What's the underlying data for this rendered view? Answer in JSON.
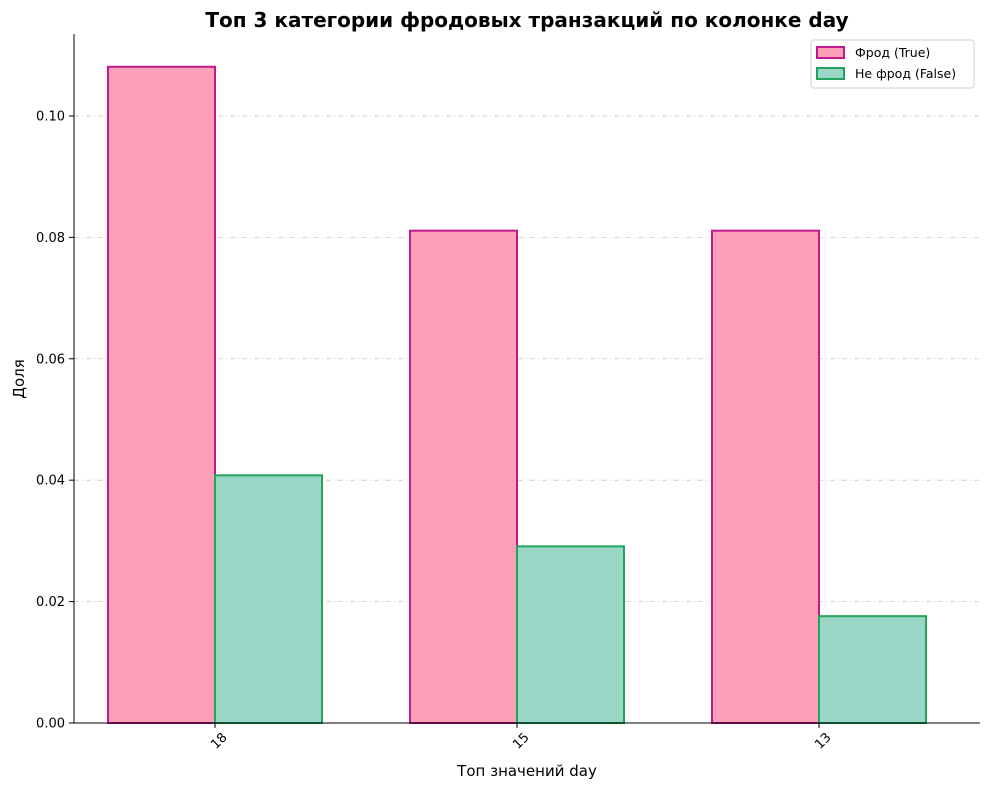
{
  "chart_data": {
    "type": "bar",
    "title": "Топ 3 категории фродовых транзакций по колонке day",
    "xlabel": "Топ значений day",
    "ylabel": "Доля",
    "categories": [
      "18",
      "15",
      "13"
    ],
    "series": [
      {
        "name": "Фрод (True)",
        "values": [
          0.1081,
          0.0811,
          0.0811
        ],
        "fill": "#fba0b8",
        "stroke": "#c2188f"
      },
      {
        "name": "Не фрод (False)",
        "values": [
          0.0408,
          0.0291,
          0.0176
        ],
        "fill": "#9bd7c6",
        "stroke": "#22a55b"
      }
    ],
    "ylim": [
      0,
      0.1135
    ],
    "yticks": [
      "0.00",
      "0.02",
      "0.04",
      "0.06",
      "0.08",
      "0.10"
    ],
    "grid": true,
    "legend_position": "top-right"
  }
}
